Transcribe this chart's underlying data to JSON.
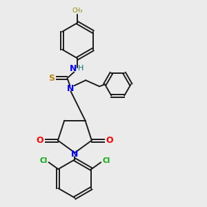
{
  "background_color": "#ebebeb",
  "figsize": [
    3.0,
    3.0
  ],
  "dpi": 100,
  "bond_lw": 1.4,
  "bond_color": "#1a1a1a",
  "label_N": "N",
  "label_H": "H",
  "label_S": "S",
  "label_O": "O",
  "label_Cl": "Cl",
  "color_N": "#0000ff",
  "color_S": "#b8860b",
  "color_O": "#ff0000",
  "color_Cl": "#00aa00",
  "color_CH3": "#888800"
}
